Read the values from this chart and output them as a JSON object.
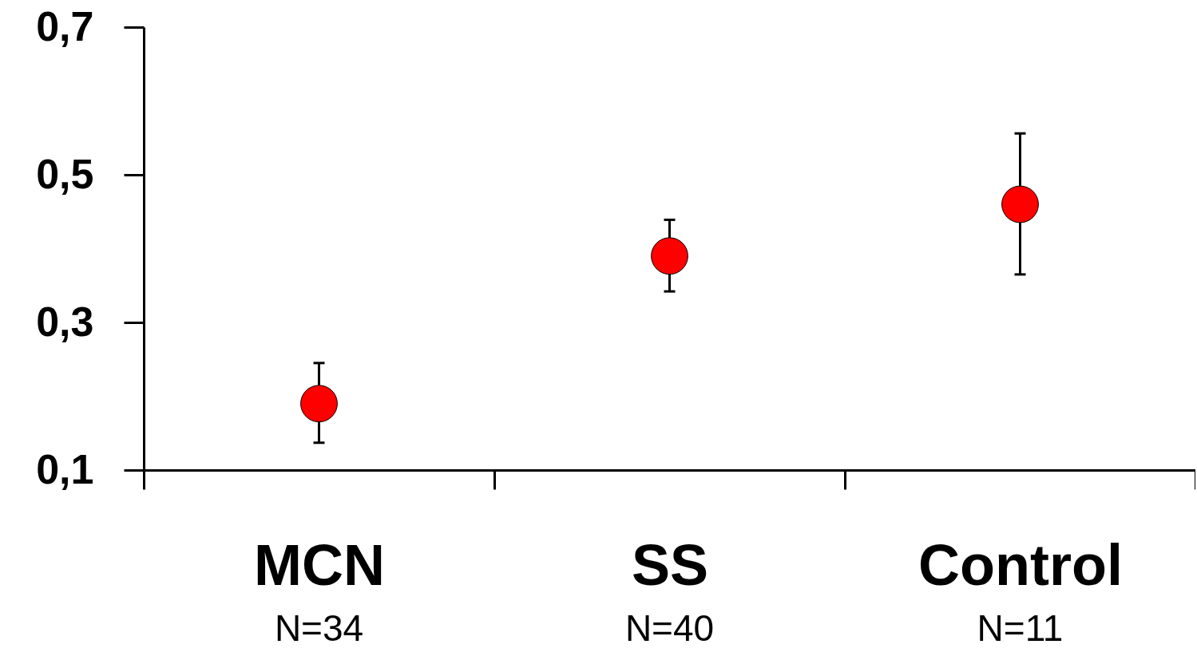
{
  "chart_data": {
    "type": "scatter",
    "categories": [
      "MCN",
      "SS",
      "Control"
    ],
    "values": [
      0.19,
      0.39,
      0.46
    ],
    "errors": [
      [
        0.137,
        0.245
      ],
      [
        0.342,
        0.439
      ],
      [
        0.365,
        0.556
      ]
    ],
    "color": "#ff0000",
    "marker": "circle",
    "grid": false,
    "ylim": [
      0.1,
      0.7
    ],
    "yticks": [
      {
        "value": 0.1,
        "label": "0,1"
      },
      {
        "value": 0.3,
        "label": "0,3"
      },
      {
        "value": 0.5,
        "label": "0,5"
      },
      {
        "value": 0.7,
        "label": "0,7"
      }
    ],
    "annotations": [
      "N=34",
      "N=40",
      "N=11"
    ]
  }
}
